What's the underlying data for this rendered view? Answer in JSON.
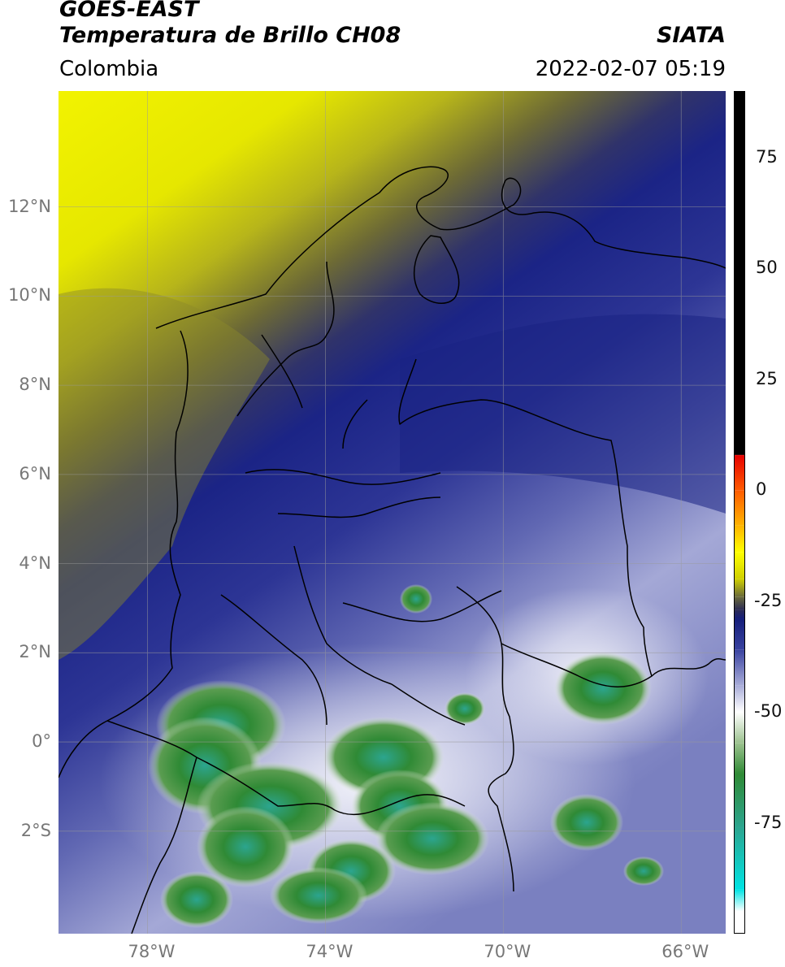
{
  "header": {
    "satellite": "GOES-EAST",
    "product": "Temperatura de Brillo CH08",
    "organization": "SIATA",
    "region": "Colombia",
    "timestamp": "2022-02-07 05:19"
  },
  "map": {
    "lon_range": [
      -80,
      -65
    ],
    "lat_range": [
      -4.3,
      14.6
    ],
    "lat_ticks": [
      {
        "lat": 12,
        "label": "12°N"
      },
      {
        "lat": 10,
        "label": "10°N"
      },
      {
        "lat": 8,
        "label": "8°N"
      },
      {
        "lat": 6,
        "label": "6°N"
      },
      {
        "lat": 4,
        "label": "4°N"
      },
      {
        "lat": 2,
        "label": "2°N"
      },
      {
        "lat": 0,
        "label": "0°"
      },
      {
        "lat": -2,
        "label": "2°S"
      }
    ],
    "lon_ticks": [
      {
        "lon": -78,
        "label": "78°W"
      },
      {
        "lon": -74,
        "label": "74°W"
      },
      {
        "lon": -70,
        "label": "70°W"
      },
      {
        "lon": -66,
        "label": "66°W"
      }
    ],
    "grid": true,
    "colors": {
      "warm": "#e3e600",
      "mid": "#5e5e34",
      "cold": "#1f2a8c",
      "very_cold": "#5a62b0",
      "whitish": "#dcdff2",
      "green": "#2f8a35",
      "teal": "#2ca58f",
      "boundary": "#000000"
    }
  },
  "colorbar": {
    "range": [
      -100,
      90
    ],
    "ticks": [
      {
        "value": 75,
        "label": "75"
      },
      {
        "value": 50,
        "label": "50"
      },
      {
        "value": 25,
        "label": "25"
      },
      {
        "value": 0,
        "label": "0"
      },
      {
        "value": -25,
        "label": "-25"
      },
      {
        "value": -50,
        "label": "-50"
      },
      {
        "value": -75,
        "label": "-75"
      }
    ],
    "stops": [
      {
        "value": 90,
        "color": "#000000"
      },
      {
        "value": 8,
        "color": "#000000"
      },
      {
        "value": 7.9,
        "color": "#e60000"
      },
      {
        "value": 0,
        "color": "#ff5a00"
      },
      {
        "value": -8,
        "color": "#ffb400"
      },
      {
        "value": -14,
        "color": "#ffff00"
      },
      {
        "value": -20,
        "color": "#d0d000"
      },
      {
        "value": -24,
        "color": "#6b6b3a"
      },
      {
        "value": -27,
        "color": "#2b2b55"
      },
      {
        "value": -29,
        "color": "#151e7a"
      },
      {
        "value": -36,
        "color": "#3a43a0"
      },
      {
        "value": -44,
        "color": "#a8acd8"
      },
      {
        "value": -50,
        "color": "#ffffff"
      },
      {
        "value": -57,
        "color": "#9cc28f"
      },
      {
        "value": -64,
        "color": "#2f8a35"
      },
      {
        "value": -76,
        "color": "#2ca58f"
      },
      {
        "value": -90,
        "color": "#00e3e3"
      },
      {
        "value": -95,
        "color": "#ffffff"
      },
      {
        "value": -100,
        "color": "#ffffff"
      }
    ]
  }
}
